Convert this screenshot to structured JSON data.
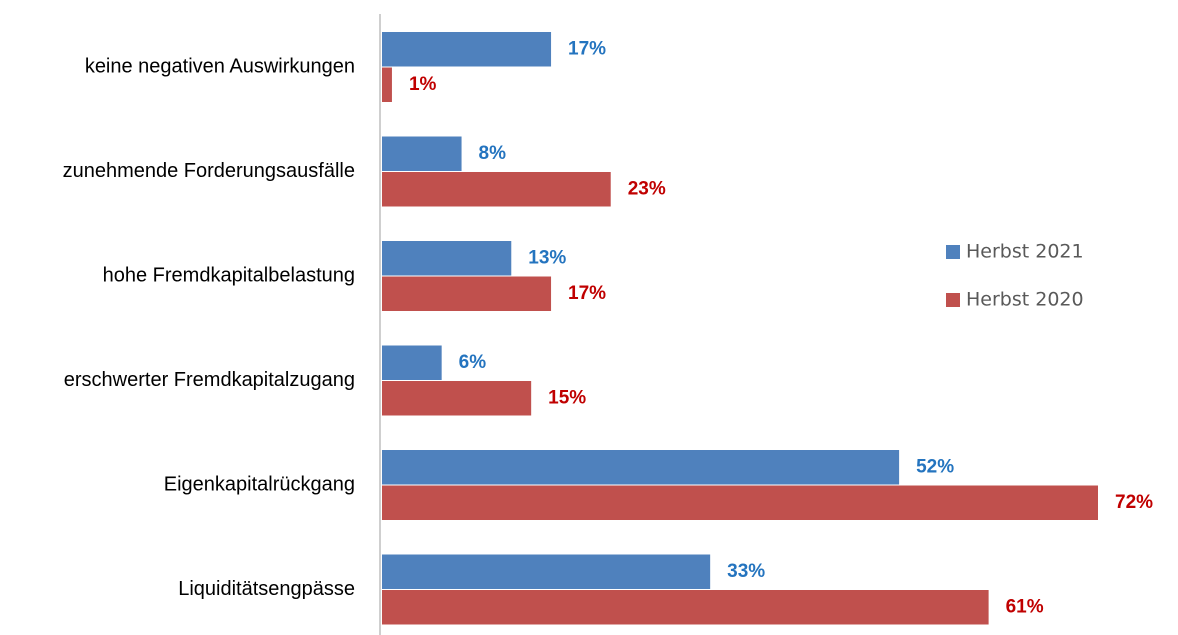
{
  "chart_data": {
    "type": "bar",
    "orientation": "horizontal",
    "categories": [
      "keine negativen Auswirkungen",
      "zunehmende Forderungsausfälle",
      "hohe Fremdkapitalbelastung",
      "erschwerter Fremdkapitalzugang",
      "Eigenkapitalrückgang",
      "Liquiditätsengpässe"
    ],
    "series": [
      {
        "name": "Herbst 2021",
        "color": "#4f81bd",
        "label_color": "#2474bf",
        "values": [
          17,
          8,
          13,
          6,
          52,
          33
        ],
        "value_labels": [
          "17%",
          "8%",
          "13%",
          "6%",
          "52%",
          "33%"
        ]
      },
      {
        "name": "Herbst 2020",
        "color": "#c0504d",
        "label_color": "#c00000",
        "values": [
          1,
          23,
          17,
          15,
          72,
          61
        ],
        "value_labels": [
          "1%",
          "23%",
          "17%",
          "15%",
          "72%",
          "61%"
        ]
      }
    ],
    "legend": "right"
  }
}
